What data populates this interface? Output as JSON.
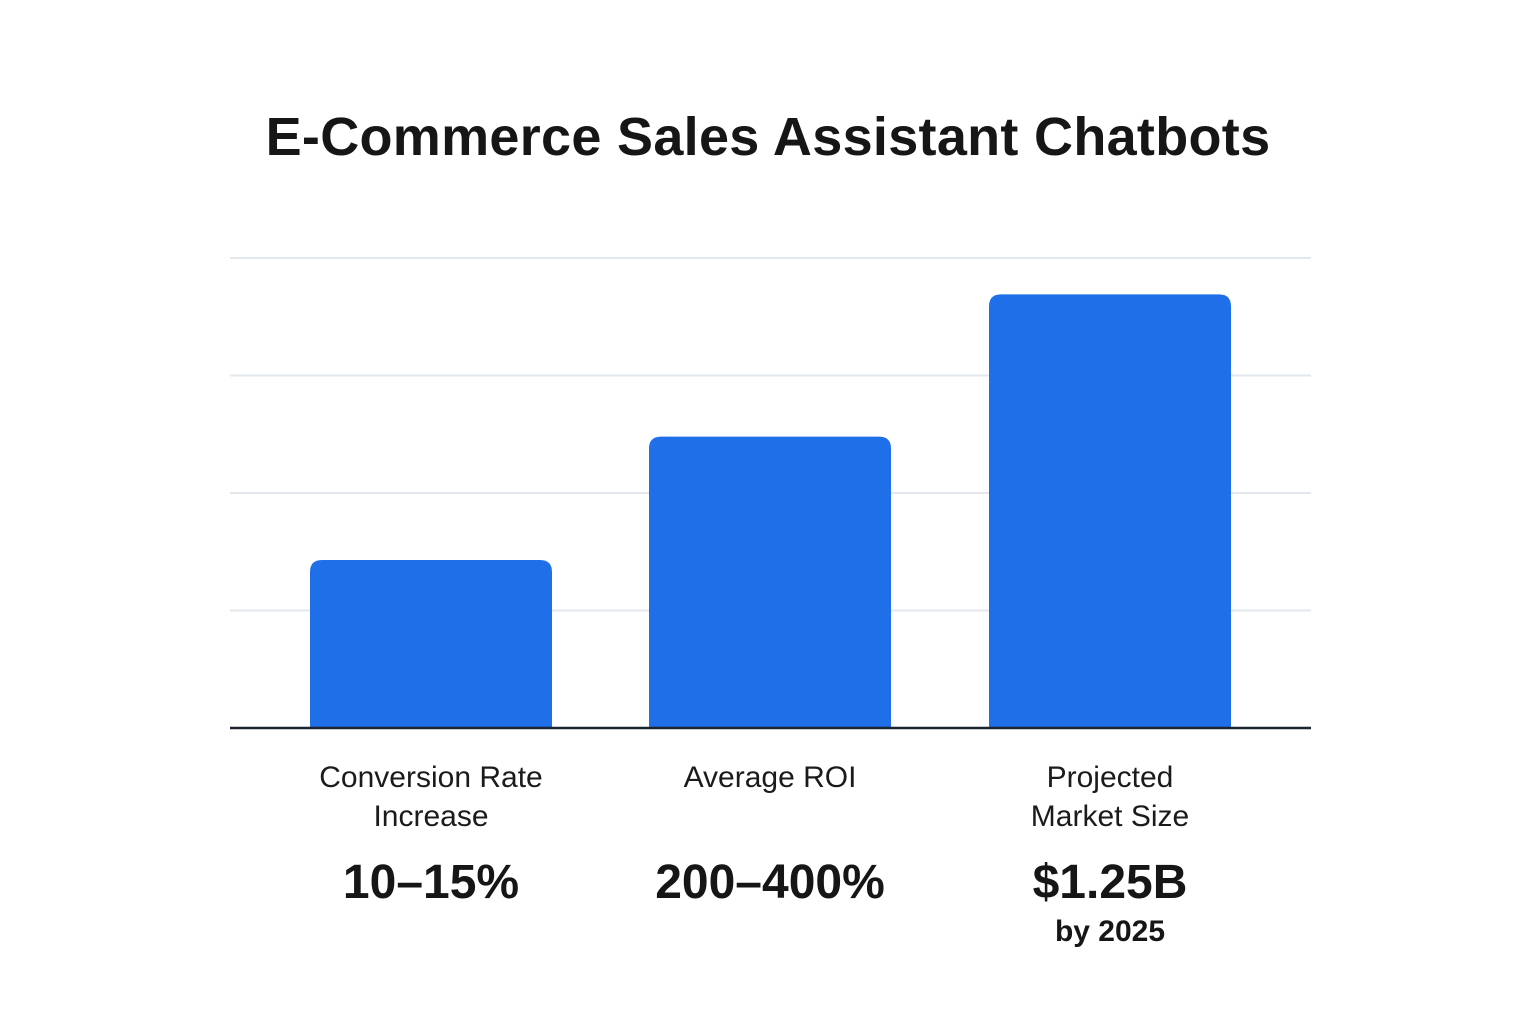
{
  "chart_data": {
    "type": "bar",
    "title": "E-Commerce Sales Assistant Chatbots",
    "categories": [
      "Conversion Rate\nIncrease",
      "Average ROI",
      "Projected\nMarket Size"
    ],
    "values": [
      1.43,
      2.48,
      3.69
    ],
    "value_labels": [
      "10–15%",
      "200–400%",
      "$1.25B"
    ],
    "value_sublabels": [
      "",
      "",
      "by 2025"
    ],
    "ylim": [
      0,
      4
    ],
    "grid": true,
    "colors": {
      "bar": "#1f6fe8",
      "grid": "#e3e8ee",
      "baseline": "#1c2433"
    }
  }
}
